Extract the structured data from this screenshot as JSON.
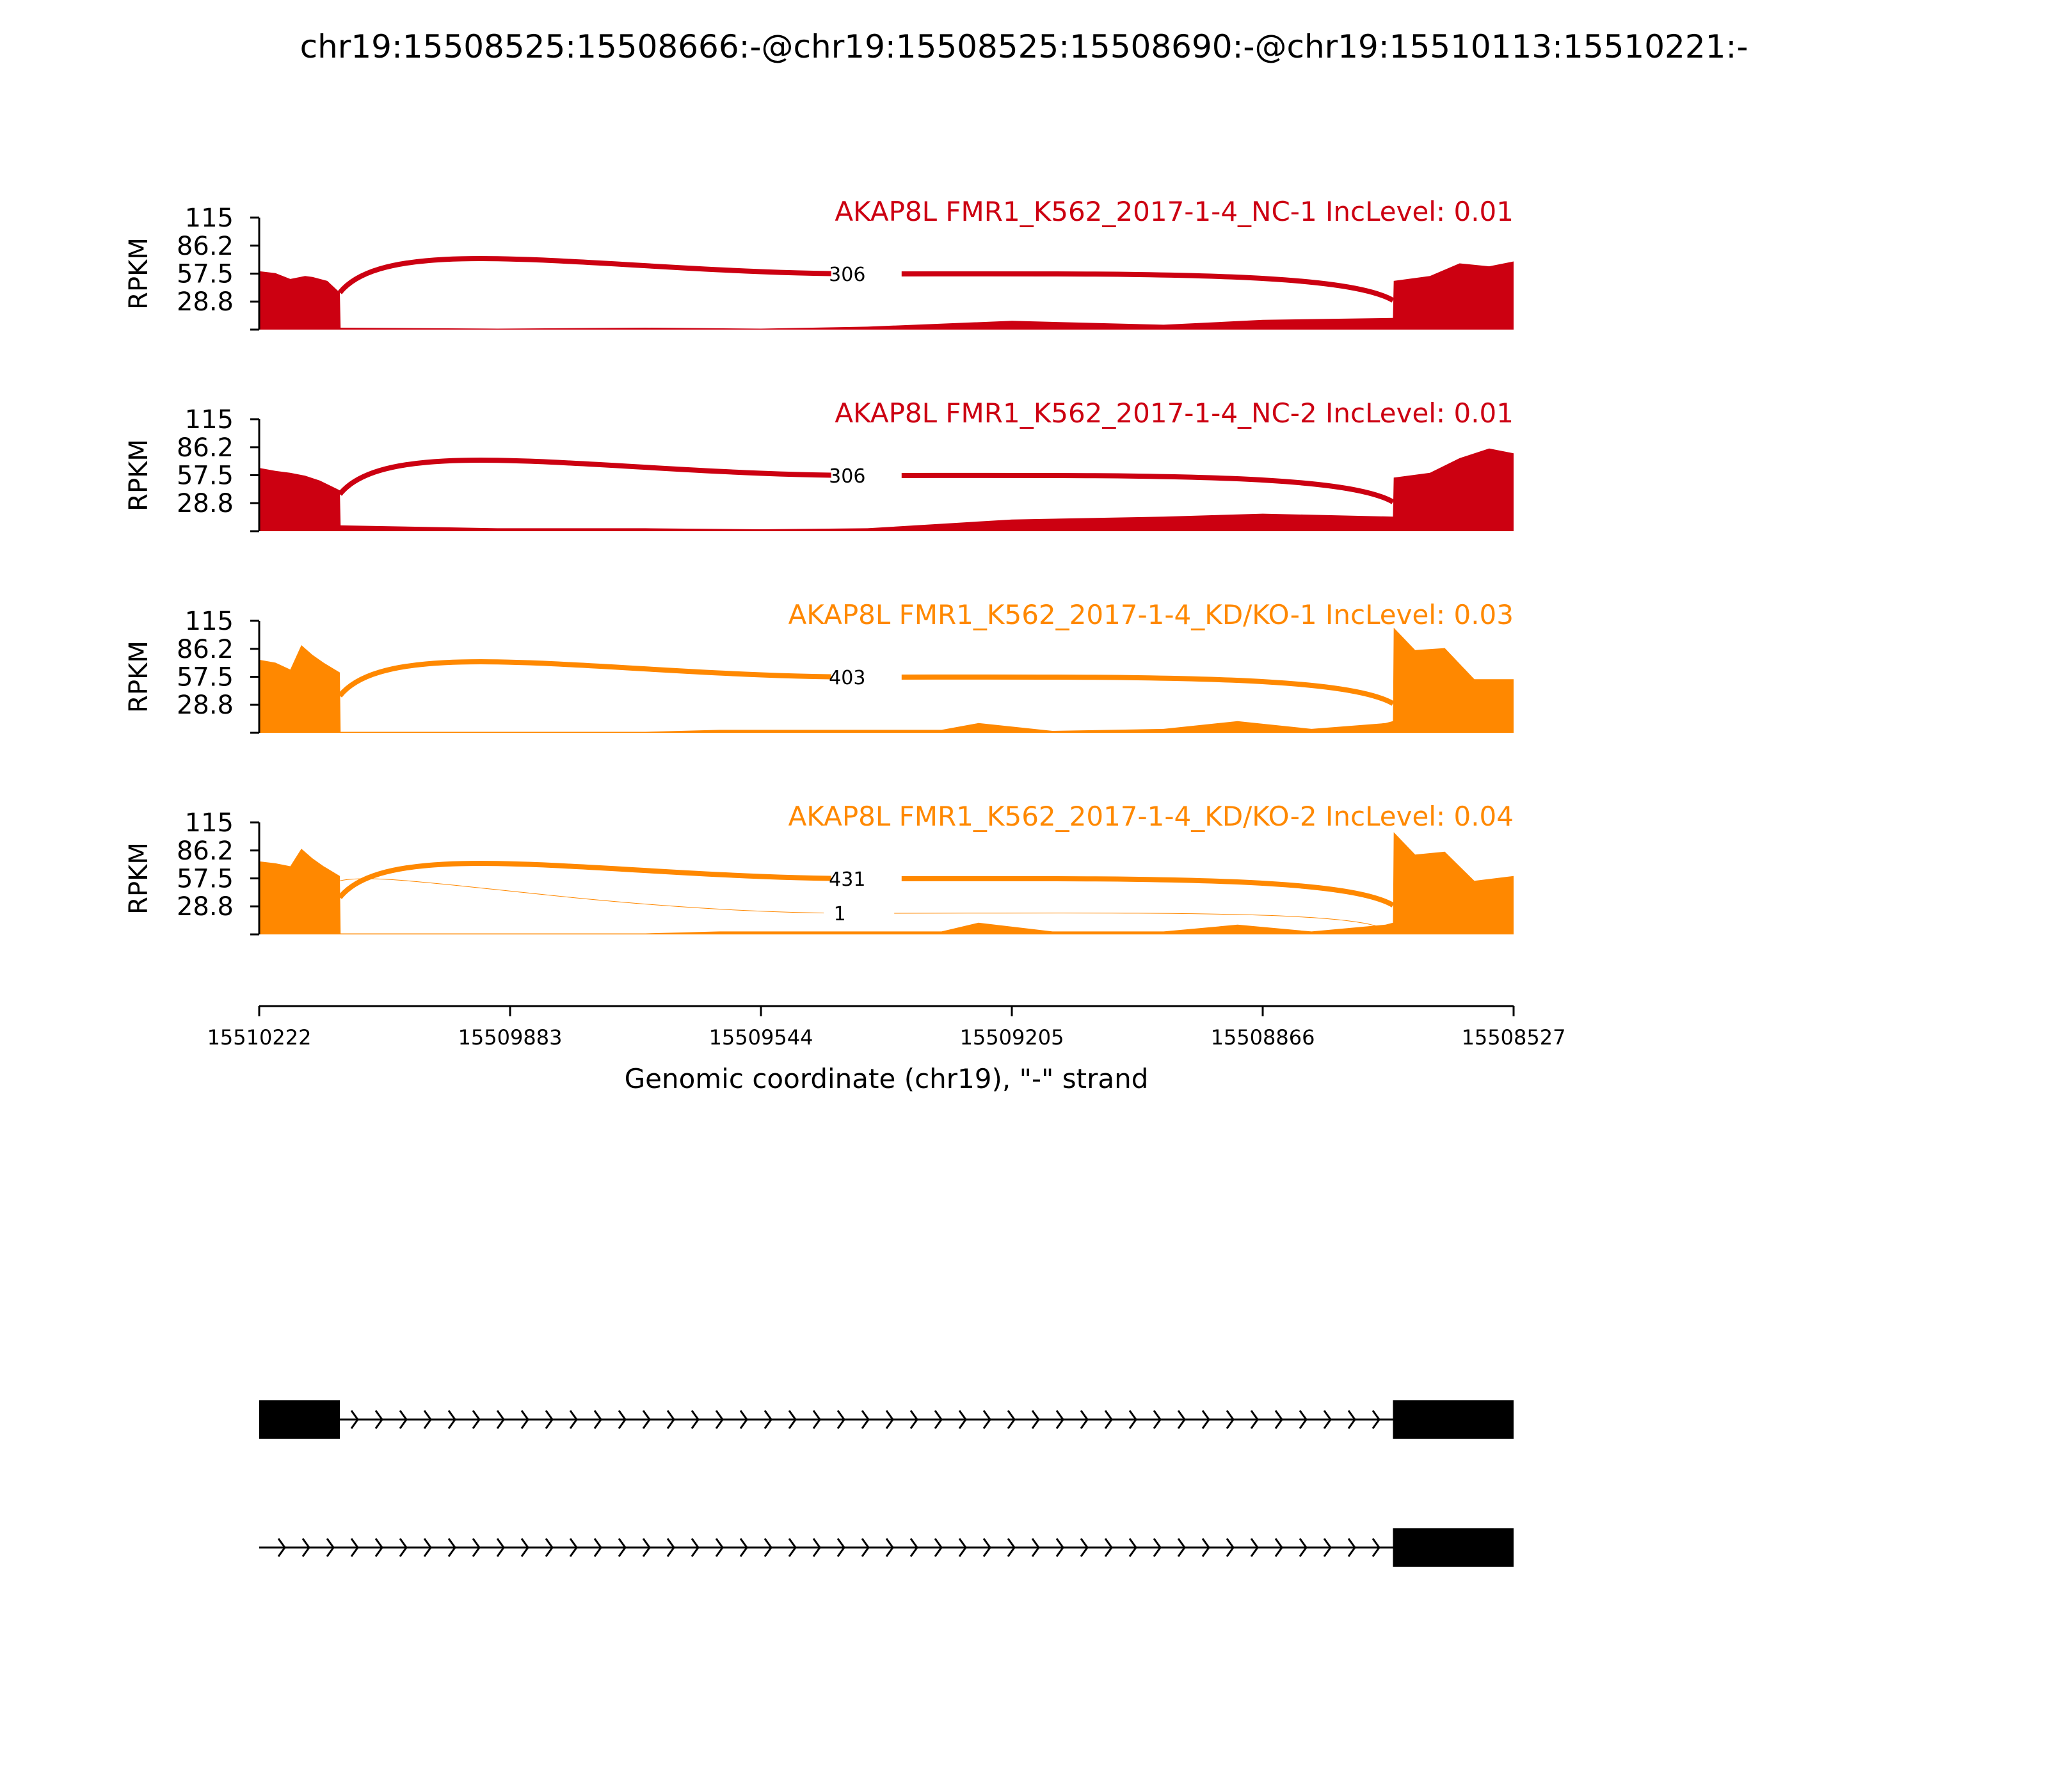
{
  "title": "chr19:15508525:15508666:-@chr19:15508525:15508690:-@chr19:15510113:15510221:-",
  "colors": {
    "nc": "#cc0011",
    "kd": "#ff8800",
    "axis": "#000000",
    "exon": "#000000"
  },
  "chart_data": {
    "type": "area",
    "title": "chr19:15508525:15508666:-@chr19:15508525:15508690:-@chr19:15510113:15510221:-",
    "xlabel": "Genomic coordinate (chr19), \"-\" strand",
    "ylabel": "RPKM",
    "xlim": [
      15510222,
      15508527
    ],
    "x_ticks": [
      "15510222",
      "15509883",
      "15509544",
      "15509205",
      "15508866",
      "15508527"
    ],
    "ylim": [
      0,
      115
    ],
    "y_ticks": [
      "115",
      "86.2",
      "57.5",
      "28.8"
    ],
    "tracks": [
      {
        "name": "AKAP8L FMR1_K562_2017-1-4_NC-1 IncLevel: 0.01",
        "color": "nc",
        "coverage": [
          [
            15510222,
            60
          ],
          [
            15510200,
            58
          ],
          [
            15510180,
            52
          ],
          [
            15510160,
            55
          ],
          [
            15510150,
            54
          ],
          [
            15510130,
            50
          ],
          [
            15510113,
            38
          ],
          [
            15510112,
            2
          ],
          [
            15509900,
            1
          ],
          [
            15509700,
            2
          ],
          [
            15509544,
            1
          ],
          [
            15509400,
            3
          ],
          [
            15509205,
            9
          ],
          [
            15509000,
            5
          ],
          [
            15508866,
            10
          ],
          [
            15508690,
            12
          ],
          [
            15508689,
            50
          ],
          [
            15508640,
            55
          ],
          [
            15508600,
            68
          ],
          [
            15508560,
            65
          ],
          [
            15508527,
            70
          ]
        ],
        "junctions": [
          {
            "start": 15510113,
            "end": 15508690,
            "count": "306"
          }
        ]
      },
      {
        "name": "AKAP8L FMR1_K562_2017-1-4_NC-2 IncLevel: 0.01",
        "color": "nc",
        "coverage": [
          [
            15510222,
            65
          ],
          [
            15510200,
            62
          ],
          [
            15510180,
            60
          ],
          [
            15510160,
            57
          ],
          [
            15510140,
            52
          ],
          [
            15510113,
            42
          ],
          [
            15510112,
            6
          ],
          [
            15509900,
            3
          ],
          [
            15509700,
            3
          ],
          [
            15509544,
            2
          ],
          [
            15509400,
            3
          ],
          [
            15509205,
            12
          ],
          [
            15509000,
            15
          ],
          [
            15508866,
            18
          ],
          [
            15508690,
            15
          ],
          [
            15508689,
            55
          ],
          [
            15508640,
            60
          ],
          [
            15508600,
            75
          ],
          [
            15508560,
            85
          ],
          [
            15508527,
            80
          ]
        ],
        "junctions": [
          {
            "start": 15510113,
            "end": 15508690,
            "count": "306"
          }
        ]
      },
      {
        "name": "AKAP8L FMR1_K562_2017-1-4_KD/KO-1 IncLevel: 0.03",
        "color": "kd",
        "coverage": [
          [
            15510222,
            75
          ],
          [
            15510200,
            72
          ],
          [
            15510180,
            65
          ],
          [
            15510165,
            90
          ],
          [
            15510150,
            80
          ],
          [
            15510135,
            72
          ],
          [
            15510113,
            62
          ],
          [
            15510112,
            1
          ],
          [
            15509700,
            1
          ],
          [
            15509600,
            3
          ],
          [
            15509300,
            3
          ],
          [
            15509250,
            10
          ],
          [
            15509150,
            2
          ],
          [
            15509000,
            4
          ],
          [
            15508900,
            12
          ],
          [
            15508800,
            4
          ],
          [
            15508700,
            10
          ],
          [
            15508690,
            12
          ],
          [
            15508689,
            108
          ],
          [
            15508660,
            85
          ],
          [
            15508620,
            87
          ],
          [
            15508580,
            55
          ],
          [
            15508527,
            55
          ]
        ],
        "junctions": [
          {
            "start": 15510113,
            "end": 15508690,
            "count": "403"
          }
        ]
      },
      {
        "name": "AKAP8L FMR1_K562_2017-1-4_KD/KO-2 IncLevel: 0.04",
        "color": "kd",
        "coverage": [
          [
            15510222,
            75
          ],
          [
            15510200,
            73
          ],
          [
            15510180,
            70
          ],
          [
            15510165,
            88
          ],
          [
            15510150,
            78
          ],
          [
            15510135,
            70
          ],
          [
            15510113,
            60
          ],
          [
            15510112,
            1
          ],
          [
            15509700,
            1
          ],
          [
            15509600,
            3
          ],
          [
            15509300,
            3
          ],
          [
            15509250,
            12
          ],
          [
            15509150,
            3
          ],
          [
            15509000,
            3
          ],
          [
            15508900,
            10
          ],
          [
            15508800,
            3
          ],
          [
            15508700,
            10
          ],
          [
            15508690,
            12
          ],
          [
            15508689,
            105
          ],
          [
            15508660,
            82
          ],
          [
            15508620,
            85
          ],
          [
            15508580,
            55
          ],
          [
            15508527,
            60
          ]
        ],
        "junctions": [
          {
            "start": 15510113,
            "end": 15508690,
            "count": "431"
          },
          {
            "start": 15510113,
            "end": 15508710,
            "count": "1"
          }
        ]
      }
    ],
    "gene_models": [
      {
        "exons": [
          [
            15510222,
            15510113
          ],
          [
            15508690,
            15508527
          ]
        ]
      },
      {
        "exons": [
          [
            15508690,
            15508527
          ]
        ]
      }
    ]
  }
}
